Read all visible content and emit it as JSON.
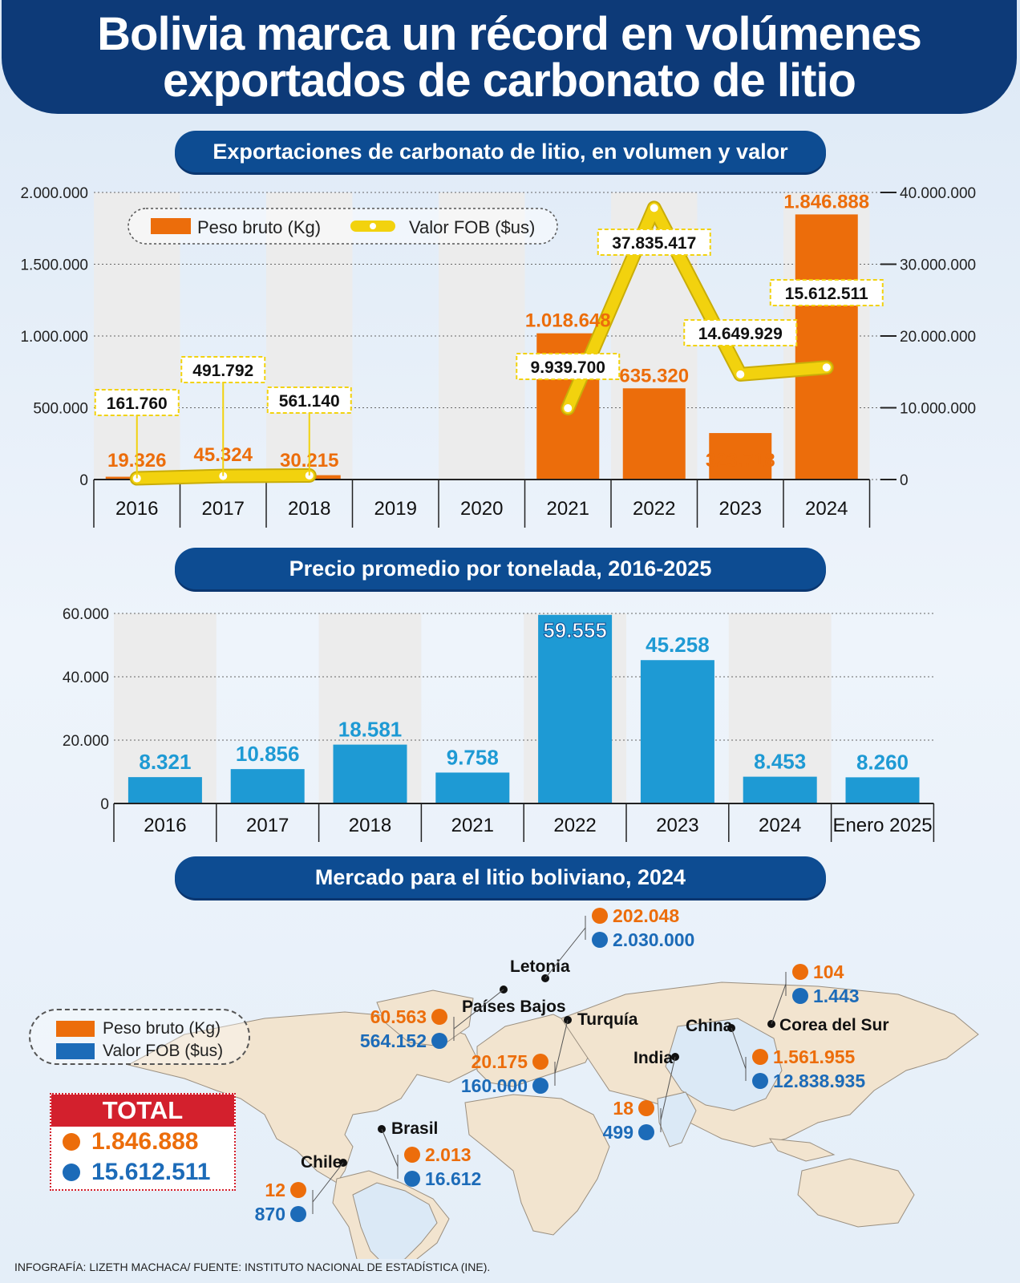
{
  "title": {
    "line1": "Bolivia marca un récord en volúmenes",
    "line2": "exportados de carbonato de litio"
  },
  "footer": "INFOGRAFÍA: LIZETH MACHACA/ FUENTE: INSTITUTO NACIONAL DE ESTADÍSTICA (INE).",
  "colors": {
    "navy": "#0d3a78",
    "orange": "#ec6d0b",
    "yellow": "#f2d20e",
    "cyan": "#1e9ad4",
    "blue": "#1c6bb8",
    "red": "#d3202d"
  },
  "chart_data": [
    {
      "type": "bar",
      "title": "Exportaciones de carbonato de litio, en volumen y valor",
      "categories": [
        "2016",
        "2017",
        "2018",
        "2019",
        "2020",
        "2021",
        "2022",
        "2023",
        "2024"
      ],
      "series": [
        {
          "name": "Peso bruto (Kg)",
          "type": "bar",
          "axis": "left",
          "values": [
            19326,
            45324,
            30215,
            null,
            null,
            1018648,
            635320,
            323718,
            1846888
          ],
          "labels": [
            "19.326",
            "45.324",
            "30.215",
            "",
            "",
            "1.018.648",
            "635.320",
            "323.718",
            "1.846.888"
          ]
        },
        {
          "name": "Valor FOB ($us)",
          "type": "line",
          "axis": "right",
          "values": [
            161760,
            491792,
            561140,
            null,
            null,
            9939700,
            37835417,
            14649929,
            15612511
          ],
          "labels": [
            "161.760",
            "491.792",
            "561.140",
            "",
            "",
            "9.939.700",
            "37.835.417",
            "14.649.929",
            "15.612.511"
          ]
        }
      ],
      "ylim": [
        0,
        2000000
      ],
      "yticks": [
        "0",
        "500.000",
        "1.000.000",
        "1.500.000",
        "2.000.000"
      ],
      "y2lim": [
        0,
        40000000
      ],
      "y2ticks": [
        "0",
        "10.000.000",
        "20.000.000",
        "30.000.000",
        "40.000.000"
      ],
      "legend": "top-left"
    },
    {
      "type": "bar",
      "title": "Precio promedio por tonelada, 2016-2025",
      "categories": [
        "2016",
        "2017",
        "2018",
        "2021",
        "2022",
        "2023",
        "2024",
        "Enero 2025"
      ],
      "values": [
        8321,
        10856,
        18581,
        9758,
        59555,
        45258,
        8453,
        8260
      ],
      "labels": [
        "8.321",
        "10.856",
        "18.581",
        "9.758",
        "59.555",
        "45.258",
        "8.453",
        "8.260"
      ],
      "ylim": [
        0,
        60000
      ],
      "yticks": [
        "0",
        "20.000",
        "40.000",
        "60.000"
      ]
    },
    {
      "type": "table",
      "title": "Mercado para el litio boliviano, 2024",
      "legend": [
        "Peso bruto (Kg)",
        "Valor FOB ($us)"
      ],
      "rows": [
        {
          "country": "Letonia",
          "peso": "202.048",
          "valor": "2.030.000"
        },
        {
          "country": "Países Bajos",
          "peso": "60.563",
          "valor": "564.152"
        },
        {
          "country": "Turquía",
          "peso": "20.175",
          "valor": "160.000"
        },
        {
          "country": "Corea del Sur",
          "peso": "104",
          "valor": "1.443"
        },
        {
          "country": "China",
          "peso": "1.561.955",
          "valor": "12.838.935"
        },
        {
          "country": "India",
          "peso": "18",
          "valor": "499"
        },
        {
          "country": "Brasil",
          "peso": "2.013",
          "valor": "16.612"
        },
        {
          "country": "Chile",
          "peso": "12",
          "valor": "870"
        }
      ],
      "total": {
        "label": "TOTAL",
        "peso": "1.846.888",
        "valor": "15.612.511"
      }
    }
  ]
}
